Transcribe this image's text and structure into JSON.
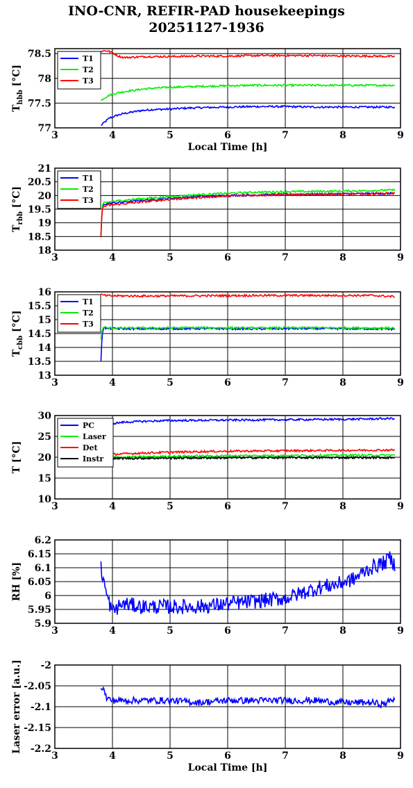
{
  "title": "INO-CNR, REFIR-PAD housekeepings",
  "subtitle": "20251127-1936",
  "chart_data": [
    {
      "type": "line",
      "ylabel": "T",
      "ylabel_sub": "hbb",
      "ylabel_unit": "[°C]",
      "xlabel": "Local Time [h]",
      "xlim": [
        3,
        9
      ],
      "ylim": [
        77,
        78.6
      ],
      "xticks": [
        "3",
        "4",
        "5",
        "6",
        "7",
        "8",
        "9"
      ],
      "yticks": [
        {
          "v": 77,
          "t": "77"
        },
        {
          "v": 77.5,
          "t": "77.5"
        },
        {
          "v": 78,
          "t": "78"
        },
        {
          "v": 78.5,
          "t": "78.5"
        }
      ],
      "grid": true,
      "legend": "top-left",
      "series": [
        {
          "name": "T1",
          "color": "#0000ff",
          "x": [
            3.8,
            3.85,
            3.9,
            3.95,
            4.0,
            4.1,
            4.2,
            4.3,
            4.4,
            4.5,
            4.7,
            5.0,
            5.3,
            5.6,
            6.0,
            6.5,
            7.0,
            7.5,
            8.0,
            8.5,
            8.9
          ],
          "values": [
            77.05,
            77.1,
            77.15,
            77.2,
            77.22,
            77.26,
            77.29,
            77.31,
            77.33,
            77.35,
            77.37,
            77.38,
            77.4,
            77.41,
            77.42,
            77.43,
            77.43,
            77.42,
            77.42,
            77.42,
            77.42
          ]
        },
        {
          "name": "T2",
          "color": "#00ee00",
          "x": [
            3.8,
            3.85,
            3.9,
            3.95,
            4.0,
            4.1,
            4.2,
            4.3,
            4.4,
            4.5,
            4.7,
            5.0,
            5.3,
            5.6,
            6.0,
            6.5,
            7.0,
            7.5,
            8.0,
            8.5,
            8.9
          ],
          "values": [
            77.55,
            77.6,
            77.63,
            77.66,
            77.68,
            77.71,
            77.73,
            77.75,
            77.76,
            77.78,
            77.8,
            77.82,
            77.83,
            77.84,
            77.85,
            77.86,
            77.86,
            77.86,
            77.86,
            77.86,
            77.86
          ]
        },
        {
          "name": "T3",
          "color": "#ff0000",
          "x": [
            3.8,
            3.9,
            4.0,
            4.1,
            4.2,
            4.4,
            4.6,
            5.0,
            5.5,
            6.0,
            6.5,
            7.0,
            7.5,
            8.0,
            8.5,
            8.9
          ],
          "values": [
            78.55,
            78.56,
            78.52,
            78.45,
            78.42,
            78.43,
            78.44,
            78.44,
            78.45,
            78.45,
            78.46,
            78.46,
            78.46,
            78.45,
            78.45,
            78.44
          ]
        }
      ]
    },
    {
      "type": "line",
      "ylabel": "T",
      "ylabel_sub": "rbb",
      "ylabel_unit": "[°C]",
      "xlabel": "",
      "xlim": [
        3,
        9
      ],
      "ylim": [
        18,
        21
      ],
      "xticks": [
        "3",
        "4",
        "5",
        "6",
        "7",
        "8",
        "9"
      ],
      "yticks": [
        {
          "v": 18,
          "t": "18"
        },
        {
          "v": 18.5,
          "t": "18.5"
        },
        {
          "v": 19,
          "t": "19"
        },
        {
          "v": 19.5,
          "t": "19.5"
        },
        {
          "v": 20,
          "t": "20"
        },
        {
          "v": 20.5,
          "t": "20.5"
        },
        {
          "v": 21,
          "t": "21"
        }
      ],
      "grid": true,
      "legend": "top-left",
      "series": [
        {
          "name": "T1",
          "color": "#0000ff",
          "x": [
            3.8,
            3.82,
            3.85,
            3.9,
            4.0,
            4.2,
            4.5,
            5.0,
            5.5,
            6.0,
            6.5,
            7.0,
            7.5,
            8.0,
            8.5,
            8.9
          ],
          "values": [
            18.5,
            19.5,
            19.68,
            19.7,
            19.72,
            19.76,
            19.82,
            19.9,
            19.96,
            20.0,
            20.02,
            20.04,
            20.05,
            20.06,
            20.07,
            20.08
          ]
        },
        {
          "name": "T2",
          "color": "#00ee00",
          "x": [
            3.8,
            3.82,
            3.85,
            3.9,
            4.0,
            4.2,
            4.5,
            5.0,
            5.5,
            6.0,
            6.5,
            7.0,
            7.5,
            8.0,
            8.5,
            8.9
          ],
          "values": [
            18.5,
            19.6,
            19.72,
            19.75,
            19.78,
            19.83,
            19.88,
            19.96,
            20.03,
            20.08,
            20.12,
            20.14,
            20.15,
            20.16,
            20.18,
            20.2
          ]
        },
        {
          "name": "T3",
          "color": "#ff0000",
          "x": [
            3.8,
            3.82,
            3.85,
            3.9,
            4.0,
            4.2,
            4.5,
            5.0,
            5.5,
            6.0,
            6.5,
            7.0,
            7.5,
            8.0,
            8.5,
            8.9
          ],
          "values": [
            18.5,
            19.5,
            19.6,
            19.63,
            19.66,
            19.7,
            19.76,
            19.86,
            19.93,
            19.98,
            20.01,
            20.03,
            20.04,
            20.05,
            20.06,
            20.08
          ]
        }
      ]
    },
    {
      "type": "line",
      "ylabel": "T",
      "ylabel_sub": "cbb",
      "ylabel_unit": "[°C]",
      "xlabel": "",
      "xlim": [
        3,
        9
      ],
      "ylim": [
        13,
        16
      ],
      "xticks": [
        "3",
        "4",
        "5",
        "6",
        "7",
        "8",
        "9"
      ],
      "yticks": [
        {
          "v": 13,
          "t": "13"
        },
        {
          "v": 13.5,
          "t": "13.5"
        },
        {
          "v": 14,
          "t": "14"
        },
        {
          "v": 14.5,
          "t": "14.5"
        },
        {
          "v": 15,
          "t": "15"
        },
        {
          "v": 15.5,
          "t": "15.5"
        },
        {
          "v": 16,
          "t": "16"
        }
      ],
      "grid": true,
      "legend": "top-left",
      "series": [
        {
          "name": "T1",
          "color": "#0000ff",
          "x": [
            3.8,
            3.82,
            3.85,
            3.9,
            4.5,
            5.5,
            6.5,
            7.5,
            8.5,
            8.9
          ],
          "values": [
            13.5,
            14.5,
            14.72,
            14.68,
            14.67,
            14.68,
            14.67,
            14.68,
            14.67,
            14.66
          ]
        },
        {
          "name": "T2",
          "color": "#00ee00",
          "x": [
            3.8,
            3.82,
            3.85,
            3.9,
            4.5,
            5.5,
            6.5,
            7.5,
            8.5,
            8.9
          ],
          "values": [
            14.3,
            14.6,
            14.75,
            14.7,
            14.7,
            14.71,
            14.7,
            14.71,
            14.7,
            14.7
          ]
        },
        {
          "name": "T3",
          "color": "#ff0000",
          "x": [
            3.8,
            3.85,
            3.9,
            4.5,
            5.5,
            6.5,
            7.5,
            8.5,
            8.9
          ],
          "values": [
            15.9,
            15.88,
            15.86,
            15.85,
            15.86,
            15.87,
            15.87,
            15.87,
            15.83
          ]
        }
      ]
    },
    {
      "type": "line",
      "ylabel": "T [°C]",
      "ylabel_sub": "",
      "ylabel_unit": "",
      "xlabel": "",
      "xlim": [
        3,
        9
      ],
      "ylim": [
        10,
        30
      ],
      "xticks": [
        "3",
        "4",
        "5",
        "6",
        "7",
        "8",
        "9"
      ],
      "yticks": [
        {
          "v": 10,
          "t": "10"
        },
        {
          "v": 15,
          "t": "15"
        },
        {
          "v": 20,
          "t": "20"
        },
        {
          "v": 25,
          "t": "25"
        },
        {
          "v": 30,
          "t": "30"
        }
      ],
      "grid": true,
      "legend": "top-left",
      "series": [
        {
          "name": "PC",
          "color": "#0000ff",
          "x": [
            3.8,
            3.9,
            4.0,
            4.2,
            4.5,
            5.0,
            5.5,
            6.0,
            6.5,
            7.0,
            7.5,
            8.0,
            8.5,
            8.9
          ],
          "values": [
            27.6,
            27.9,
            28.1,
            28.4,
            28.6,
            28.8,
            28.85,
            28.9,
            28.95,
            29.0,
            29.05,
            29.1,
            29.2,
            29.3
          ]
        },
        {
          "name": "Laser",
          "color": "#00ee00",
          "x": [
            3.8,
            4.0,
            4.5,
            5.0,
            5.5,
            6.0,
            6.5,
            7.0,
            7.5,
            8.0,
            8.5,
            8.9
          ],
          "values": [
            19.8,
            20.0,
            20.1,
            20.2,
            20.3,
            20.35,
            20.4,
            20.4,
            20.45,
            20.5,
            20.5,
            20.5
          ]
        },
        {
          "name": "Det",
          "color": "#ff0000",
          "x": [
            3.8,
            4.0,
            4.5,
            5.0,
            5.5,
            6.0,
            6.5,
            7.0,
            7.5,
            8.0,
            8.5,
            8.9
          ],
          "values": [
            20.3,
            20.7,
            21.0,
            21.2,
            21.35,
            21.45,
            21.5,
            21.55,
            21.6,
            21.65,
            21.7,
            21.75
          ]
        },
        {
          "name": "Instr",
          "color": "#000000",
          "x": [
            3.8,
            4.0,
            4.5,
            5.0,
            5.5,
            6.0,
            6.5,
            7.0,
            7.5,
            8.0,
            8.5,
            8.9
          ],
          "values": [
            19.6,
            19.7,
            19.75,
            19.8,
            19.82,
            19.85,
            19.87,
            19.88,
            19.9,
            19.9,
            19.9,
            19.9
          ]
        }
      ]
    },
    {
      "type": "line",
      "ylabel": "RH [%]",
      "ylabel_sub": "",
      "ylabel_unit": "",
      "xlabel": "",
      "xlim": [
        3,
        9
      ],
      "ylim": [
        5.9,
        6.2
      ],
      "xticks": [
        "3",
        "4",
        "5",
        "6",
        "7",
        "8",
        "9"
      ],
      "yticks": [
        {
          "v": 5.9,
          "t": "5.9"
        },
        {
          "v": 5.95,
          "t": "5.95"
        },
        {
          "v": 6,
          "t": "6"
        },
        {
          "v": 6.05,
          "t": "6.05"
        },
        {
          "v": 6.1,
          "t": "6.1"
        },
        {
          "v": 6.15,
          "t": "6.15"
        },
        {
          "v": 6.2,
          "t": "6.2"
        }
      ],
      "grid": true,
      "legend": "none",
      "series": [
        {
          "name": "",
          "color": "#0000ff",
          "x": [
            3.8,
            3.85,
            3.9,
            3.95,
            4.0,
            4.1,
            4.2,
            4.5,
            5.0,
            5.5,
            6.0,
            6.5,
            7.0,
            7.3,
            7.6,
            7.9,
            8.2,
            8.4,
            8.6,
            8.75,
            8.8,
            8.9
          ],
          "values": [
            6.1,
            6.05,
            6.0,
            5.97,
            5.94,
            5.96,
            5.97,
            5.96,
            5.96,
            5.96,
            5.97,
            5.98,
            5.99,
            6.01,
            6.03,
            6.04,
            6.06,
            6.09,
            6.11,
            6.12,
            6.14,
            6.11
          ]
        }
      ]
    },
    {
      "type": "line",
      "ylabel": "Laser error [a.u.]",
      "ylabel_sub": "",
      "ylabel_unit": "",
      "xlabel": "Local Time [h]",
      "xlim": [
        3,
        9
      ],
      "ylim": [
        -2.2,
        -2
      ],
      "xticks": [
        "3",
        "4",
        "5",
        "6",
        "7",
        "8",
        "9"
      ],
      "yticks": [
        {
          "v": -2.2,
          "t": "-2.2"
        },
        {
          "v": -2.15,
          "t": "-2.15"
        },
        {
          "v": -2.1,
          "t": "-2.1"
        },
        {
          "v": -2.05,
          "t": "-2.05"
        },
        {
          "v": -2,
          "t": "-2"
        }
      ],
      "grid": true,
      "legend": "none",
      "series": [
        {
          "name": "",
          "color": "#0000ff",
          "x": [
            3.8,
            3.85,
            3.9,
            4.0,
            4.5,
            5.0,
            5.5,
            6.0,
            6.5,
            7.0,
            7.5,
            8.0,
            8.5,
            8.7,
            8.9
          ],
          "values": [
            -2.05,
            -2.06,
            -2.08,
            -2.085,
            -2.085,
            -2.085,
            -2.09,
            -2.085,
            -2.085,
            -2.085,
            -2.085,
            -2.09,
            -2.09,
            -2.095,
            -2.08
          ]
        }
      ]
    }
  ]
}
